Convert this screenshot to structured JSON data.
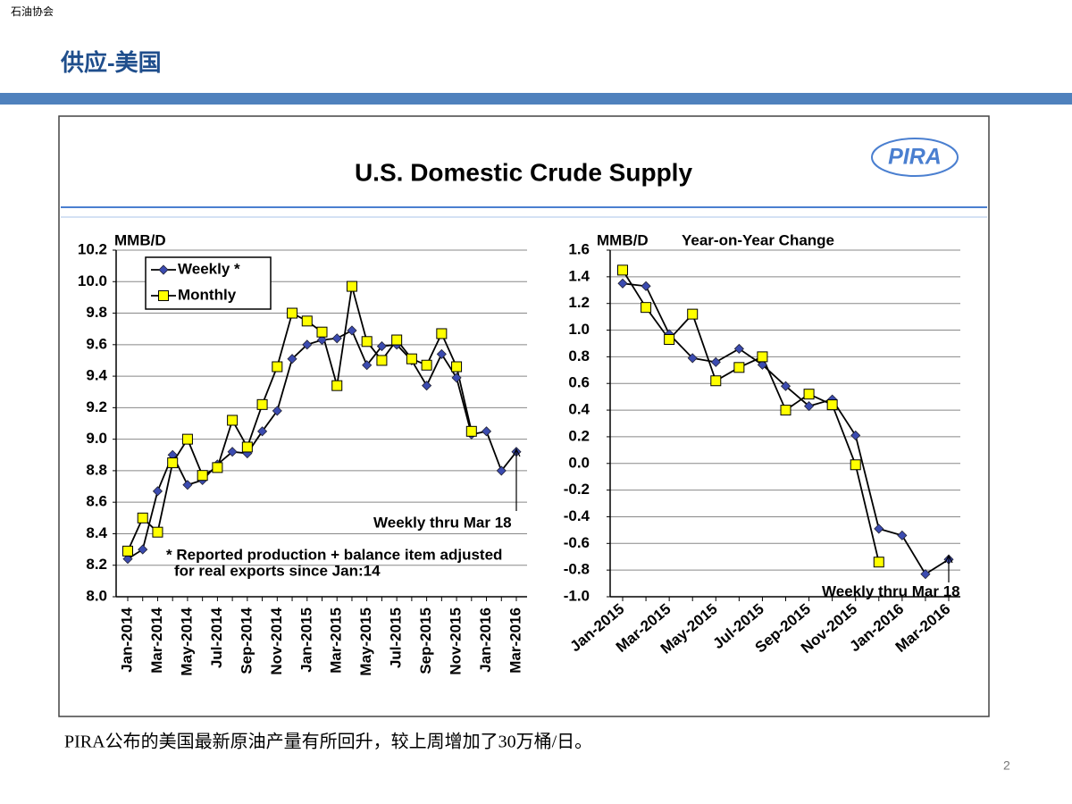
{
  "header": {
    "org": "石油协会",
    "title": "供应-美国"
  },
  "panel": {
    "title": "U.S. Domestic Crude Supply",
    "logo": "PIRA"
  },
  "chart_data": [
    {
      "type": "line",
      "ylabel": "MMB/D",
      "categories": [
        "Jan-2014",
        null,
        "Mar-2014",
        null,
        "May-2014",
        null,
        "Jul-2014",
        null,
        "Sep-2014",
        null,
        "Nov-2014",
        null,
        "Jan-2015",
        null,
        "Mar-2015",
        null,
        "May-2015",
        null,
        "Jul-2015",
        null,
        "Sep-2015",
        null,
        "Nov-2015",
        null,
        "Jan-2016",
        null,
        "Mar-2016"
      ],
      "series": [
        {
          "name": "Weekly *",
          "color": "#3b4bb0",
          "marker": "diamond",
          "values": [
            8.24,
            8.3,
            8.67,
            8.9,
            8.71,
            8.74,
            8.84,
            8.92,
            8.91,
            9.05,
            9.18,
            9.51,
            9.6,
            9.63,
            9.64,
            9.69,
            9.47,
            9.59,
            9.6,
            9.5,
            9.34,
            9.54,
            9.39,
            9.03,
            9.05,
            8.8,
            8.92
          ]
        },
        {
          "name": "Monthly",
          "color": "#ffff00",
          "marker": "square",
          "values": [
            8.29,
            8.5,
            8.41,
            8.85,
            9.0,
            8.77,
            8.82,
            9.12,
            8.95,
            9.22,
            9.46,
            9.8,
            9.75,
            9.68,
            9.34,
            9.97,
            9.62,
            9.5,
            9.63,
            9.51,
            9.47,
            9.67,
            9.46,
            9.05,
            null,
            null,
            null
          ]
        }
      ],
      "ylim": [
        8.0,
        10.2
      ],
      "yticks": [
        {
          "value": 8,
          "label": "8.0"
        },
        8.2,
        8.4,
        8.6,
        8.8,
        {
          "value": 9,
          "label": "9.0"
        },
        9.2,
        9.4,
        9.6,
        9.8,
        {
          "value": 10,
          "label": "10.0"
        },
        10.2
      ],
      "grid": true,
      "legend": "upper-left",
      "annotation": "Weekly thru Mar 18",
      "footnote": [
        "* Reported production + balance item adjusted",
        "for real exports since Jan:14"
      ]
    },
    {
      "type": "line",
      "ylabel": "MMB/D",
      "subtitle": "Year-on-Year Change",
      "categories": [
        "Jan-2015",
        null,
        "Mar-2015",
        null,
        "May-2015",
        null,
        "Jul-2015",
        null,
        "Sep-2015",
        null,
        "Nov-2015",
        null,
        "Jan-2016",
        null,
        "Mar-2016"
      ],
      "series": [
        {
          "color": "#3b4bb0",
          "marker": "diamond",
          "values": [
            1.35,
            1.33,
            0.97,
            0.79,
            0.76,
            0.86,
            0.74,
            0.58,
            0.43,
            0.48,
            0.21,
            -0.49,
            -0.54,
            -0.83,
            -0.72
          ]
        },
        {
          "color": "#ffff00",
          "marker": "square",
          "values": [
            1.45,
            1.17,
            0.93,
            1.12,
            0.62,
            0.72,
            0.8,
            0.4,
            0.52,
            0.44,
            -0.01,
            -0.74,
            null,
            null,
            null
          ]
        }
      ],
      "ylim": [
        -1.0,
        1.6
      ],
      "yticks": [
        {
          "value": -1,
          "label": "-1.0"
        },
        -0.8,
        -0.6,
        -0.4,
        -0.2,
        {
          "value": 0,
          "label": "0.0"
        },
        0.2,
        0.4,
        0.6,
        0.8,
        {
          "value": 1,
          "label": "1.0"
        },
        1.2,
        1.4,
        1.6
      ],
      "grid": true,
      "annotation": "Weekly thru Mar 18"
    }
  ],
  "caption": "PIRA公布的美国最新原油产量有所回升，较上周增加了30万桶/日。",
  "page_number": "2"
}
